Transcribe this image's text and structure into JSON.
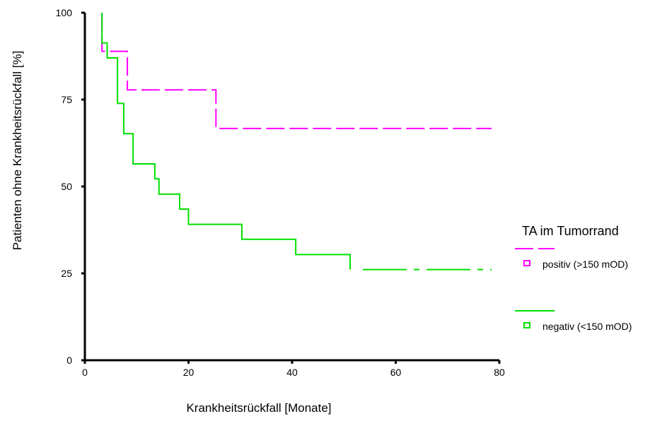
{
  "chart_data": {
    "type": "line",
    "title": "",
    "xlabel": "Krankheitsrückfall [Monate]",
    "ylabel": "Patienten ohne Krankheitsrückfall [%]",
    "xlim": [
      0,
      80
    ],
    "ylim": [
      0,
      100
    ],
    "x_ticks": [
      0,
      20,
      40,
      60,
      80
    ],
    "y_ticks": [
      0,
      25,
      50,
      75,
      100
    ],
    "x_tick_labels": [
      "0",
      "20",
      "40",
      "60",
      "80"
    ],
    "y_tick_labels": [
      "0",
      "25",
      "50",
      "75",
      "100"
    ],
    "grid": false,
    "legend": {
      "title": "TA im Tumorrand",
      "position": "right"
    },
    "series": [
      {
        "name": "positiv (>150 mOD)",
        "color": "#ff00ff",
        "line_style": "dashed",
        "steps": [
          [
            3.3,
            100
          ],
          [
            3.3,
            88.9
          ],
          [
            8.2,
            77.8
          ],
          [
            25.3,
            66.7
          ],
          [
            78.5,
            66.7
          ]
        ]
      },
      {
        "name": "negativ (<150 mOD)",
        "color": "#00e000",
        "line_style": "solid-then-dashed",
        "steps": [
          [
            3.3,
            100
          ],
          [
            3.3,
            91.3
          ],
          [
            4.3,
            87.0
          ],
          [
            6.3,
            73.9
          ],
          [
            7.5,
            65.2
          ],
          [
            9.3,
            56.5
          ],
          [
            13.5,
            52.2
          ],
          [
            14.3,
            47.8
          ],
          [
            18.3,
            43.5
          ],
          [
            20.0,
            39.1
          ],
          [
            30.3,
            34.8
          ],
          [
            40.7,
            30.4
          ],
          [
            51.2,
            26.1
          ],
          [
            78.5,
            26.1
          ]
        ]
      }
    ]
  }
}
